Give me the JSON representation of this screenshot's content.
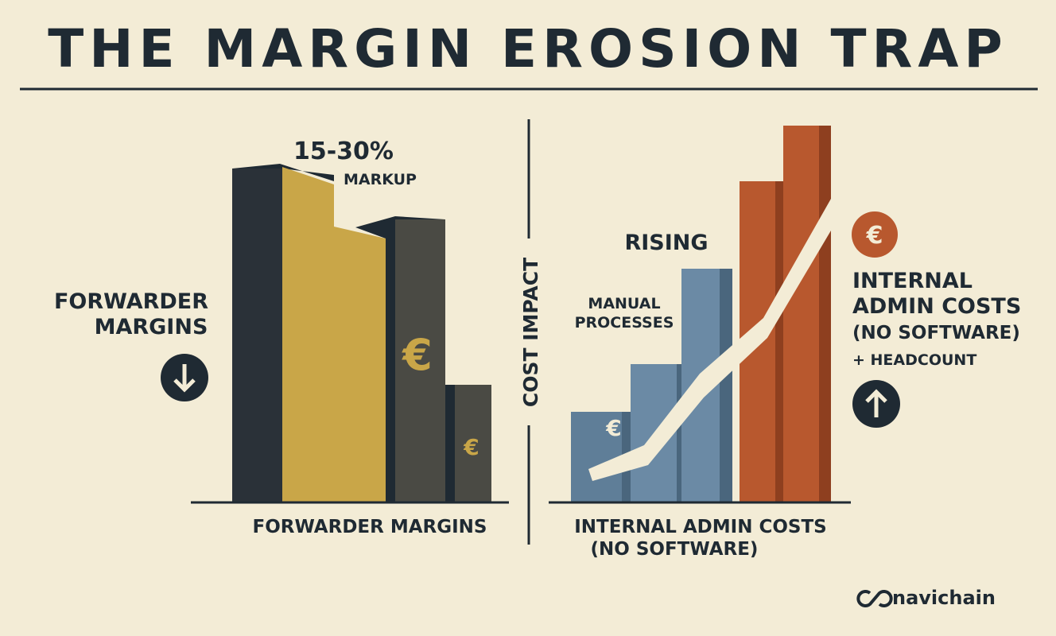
{
  "header": {
    "title": "THE MARGIN EROSION TRAP"
  },
  "left_panel": {
    "side_label": [
      "FORWARDER",
      "MARGINS"
    ],
    "annotation": [
      "15-30%",
      "MARKUP"
    ],
    "currency_symbols": [
      "€",
      "€"
    ],
    "axis_label": "FORWARDER MARGINS"
  },
  "divider_label": "COST IMPACT",
  "right_panel": {
    "rising_label": "RISING",
    "process_label": [
      "MANUAL",
      "PROCESSES"
    ],
    "currency_symbols": [
      "€",
      "€"
    ],
    "side_label": [
      "INTERNAL",
      "ADMIN COSTS",
      "(NO SOFTWARE)"
    ],
    "side_note": "+ HEADCOUNT",
    "axis_label": [
      "INTERNAL ADMIN COSTS",
      "(NO SOFTWARE)"
    ]
  },
  "logo": "navichain"
}
